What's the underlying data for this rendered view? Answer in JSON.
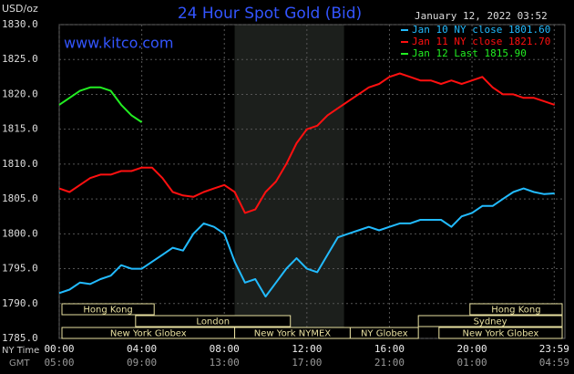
{
  "chart_data": {
    "type": "line",
    "title": "24 Hour Spot Gold (Bid)",
    "unit": "USD/oz",
    "timestamp": "January 12, 2022 03:52",
    "website": "www.kitco.com",
    "x_label": "NY Time",
    "x2_label": "GMT",
    "x": [
      0,
      0.5,
      1,
      1.5,
      2,
      2.5,
      3,
      3.5,
      4,
      4.5,
      5,
      5.5,
      6,
      6.5,
      7,
      7.5,
      8,
      8.5,
      9,
      9.5,
      10,
      10.5,
      11,
      11.5,
      12,
      12.5,
      13,
      13.5,
      14,
      14.5,
      15,
      15.5,
      16,
      16.5,
      17,
      17.5,
      18,
      18.5,
      19,
      19.5,
      20,
      20.5,
      21,
      21.5,
      22,
      22.5,
      23,
      23.5,
      24
    ],
    "xlim": [
      0,
      24.5
    ],
    "xticks": [
      {
        "value": 0,
        "label": "00:00"
      },
      {
        "value": 4,
        "label": "04:00"
      },
      {
        "value": 8,
        "label": "08:00"
      },
      {
        "value": 12,
        "label": "12:00"
      },
      {
        "value": 16,
        "label": "16:00"
      },
      {
        "value": 20,
        "label": "20:00"
      },
      {
        "value": 23.983,
        "label": "23:59"
      }
    ],
    "x2ticks": [
      {
        "value": 0,
        "label": "05:00"
      },
      {
        "value": 4,
        "label": "09:00"
      },
      {
        "value": 8,
        "label": "13:00"
      },
      {
        "value": 12,
        "label": "17:00"
      },
      {
        "value": 16,
        "label": "21:00"
      },
      {
        "value": 20,
        "label": "01:00"
      },
      {
        "value": 23.983,
        "label": "04:59"
      }
    ],
    "ylim": [
      1785,
      1830
    ],
    "yticks": [
      {
        "value": 1785,
        "label": "1785.0"
      },
      {
        "value": 1790,
        "label": "1790.0"
      },
      {
        "value": 1795,
        "label": "1795.0"
      },
      {
        "value": 1800,
        "label": "1800.0"
      },
      {
        "value": 1805,
        "label": "1805.0"
      },
      {
        "value": 1810,
        "label": "1810.0"
      },
      {
        "value": 1815,
        "label": "1815.0"
      },
      {
        "value": 1820,
        "label": "1820.0"
      },
      {
        "value": 1825,
        "label": "1825.0"
      },
      {
        "value": 1830,
        "label": "1830.0"
      }
    ],
    "grid": true,
    "shaded": {
      "start": 8.5,
      "end": 13.8
    },
    "market_rows": [
      [
        {
          "name": "Hong Kong",
          "start": 0,
          "end": 4.6
        },
        {
          "name": "Hong Kong",
          "start": 19.9,
          "end": 24.5
        }
      ],
      [
        {
          "name": "London",
          "start": 3.7,
          "end": 11.2
        },
        {
          "name": "Sydney",
          "start": 17.4,
          "end": 24.5
        }
      ],
      [
        {
          "name": "New York Globex",
          "start": 0,
          "end": 8.5
        },
        {
          "name": "New York NYMEX",
          "start": 8.5,
          "end": 14.1
        },
        {
          "name": "NY Globex",
          "start": 14.1,
          "end": 17.4
        },
        {
          "name": "New York Globex",
          "start": 18.4,
          "end": 24.5
        }
      ]
    ],
    "series": [
      {
        "name": "Jan 10 NY close 1801.60",
        "color": "#22bbff",
        "values": [
          1791.5,
          1792,
          1793,
          1792.8,
          1793.5,
          1794,
          1795.5,
          1795,
          1795,
          1796,
          1797,
          1798,
          1797.6,
          1800,
          1801.5,
          1801,
          1800,
          1796,
          1793,
          1793.5,
          1791,
          1793,
          1795,
          1796.5,
          1795,
          1794.5,
          1797,
          1799.5,
          1800,
          1800.5,
          1801,
          1800.5,
          1801,
          1801.5,
          1801.5,
          1802,
          1802,
          1802,
          1801,
          1802.5,
          1803,
          1804,
          1804,
          1805,
          1806,
          1806.5,
          1806,
          1805.7,
          1805.8
        ]
      },
      {
        "name": "Jan 11 NY close 1821.70",
        "color": "#ff1010",
        "values": [
          1806.5,
          1806,
          1807,
          1808,
          1808.5,
          1808.5,
          1809,
          1809,
          1809.5,
          1809.5,
          1808,
          1806,
          1805.5,
          1805.3,
          1806,
          1806.5,
          1807,
          1806,
          1803,
          1803.5,
          1806,
          1807.5,
          1810,
          1813,
          1815,
          1815.5,
          1817,
          1818,
          1819,
          1820,
          1821,
          1821.5,
          1822.5,
          1823,
          1822.5,
          1822,
          1822,
          1821.5,
          1822,
          1821.5,
          1822,
          1822.5,
          1821,
          1820,
          1820,
          1819.5,
          1819.5,
          1819,
          1818.5
        ]
      },
      {
        "name": "Jan 12 Last 1815.90",
        "color": "#22ee22",
        "values": [
          1818.5,
          1819.5,
          1820.5,
          1821,
          1821,
          1820.5,
          1818.5,
          1817,
          1816,
          null,
          null,
          null,
          null,
          null,
          null,
          null,
          null,
          null,
          null,
          null,
          null,
          null,
          null,
          null,
          null,
          null,
          null,
          null,
          null,
          null,
          null,
          null,
          null,
          null,
          null,
          null,
          null,
          null,
          null,
          null,
          null,
          null,
          null,
          null,
          null,
          null,
          null,
          null,
          null
        ]
      }
    ]
  }
}
